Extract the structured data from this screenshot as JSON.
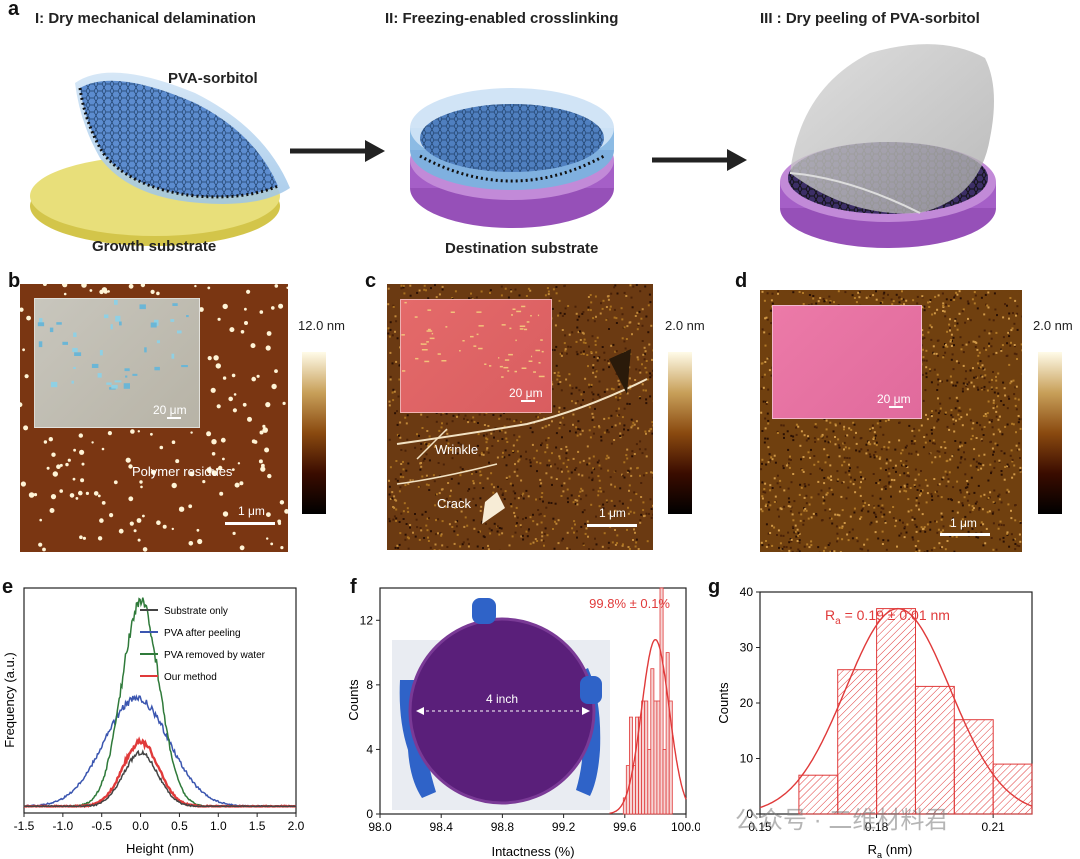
{
  "panel_a": {
    "label": "a",
    "step1_title": "I: Dry mechanical delamination",
    "step2_title": "II: Freezing-enabled crosslinking",
    "step3_title": "III : Dry peeling of PVA-sorbitol",
    "pva_label": "PVA-sorbitol",
    "growth_label": "Growth substrate",
    "destination_label": "Destination substrate"
  },
  "panel_b": {
    "label": "b",
    "colorbar_max": "12.0 nm",
    "inset_scale": "20 μm",
    "scale": "1 μm",
    "annotation": "Polymer residues"
  },
  "panel_c": {
    "label": "c",
    "colorbar_max": "2.0 nm",
    "inset_scale": "20 μm",
    "scale": "1 μm",
    "annotation_wrinkle": "Wrinkle",
    "annotation_crack": "Crack"
  },
  "panel_d": {
    "label": "d",
    "colorbar_max": "2.0 nm",
    "inset_scale": "20 μm",
    "scale": "1 μm"
  },
  "panel_f_photo": {
    "wafer_label": "4 inch"
  },
  "watermark": "公众号 · 二维材料君",
  "colors": {
    "data_red": "#e03a3a",
    "dark_green": "#2f7a3a",
    "blue": "#3b56b0",
    "gray": "#444444"
  },
  "chart_data": [
    {
      "id": "e",
      "type": "line",
      "panel_label": "e",
      "xlabel": "Height (nm)",
      "ylabel": "Frequency (a.u.)",
      "xlim": [
        -1.5,
        2.0
      ],
      "xticks": [
        "-1.5",
        "-1.0",
        "-0.5",
        "0.0",
        "0.5",
        "1.0",
        "1.5",
        "2.0"
      ],
      "series": [
        {
          "name": "Substrate only",
          "color": "#444444",
          "center": 0.0,
          "sigma": 0.22,
          "peak": 0.25
        },
        {
          "name": "PVA after peeling",
          "color": "#3b56b0",
          "center": -0.05,
          "sigma": 0.42,
          "peak": 0.5
        },
        {
          "name": "PVA removed by water",
          "color": "#2f7a3a",
          "center": 0.0,
          "sigma": 0.24,
          "peak": 0.95
        },
        {
          "name": "Our method",
          "color": "#e03a3a",
          "center": 0.0,
          "sigma": 0.23,
          "peak": 0.3
        }
      ]
    },
    {
      "id": "f",
      "type": "bar",
      "panel_label": "f",
      "xlabel": "Intactness (%)",
      "ylabel": "Counts",
      "xlim": [
        98.0,
        100.0
      ],
      "ylim": [
        0,
        14
      ],
      "xticks": [
        "98.0",
        "98.4",
        "98.8",
        "99.2",
        "99.6",
        "100.0"
      ],
      "yticks": [
        "0",
        "4",
        "8",
        "12"
      ],
      "annotation": "99.8% ± 0.1%",
      "bin_centers": [
        99.6,
        99.62,
        99.64,
        99.66,
        99.68,
        99.7,
        99.72,
        99.74,
        99.76,
        99.78,
        99.8,
        99.82,
        99.84,
        99.86,
        99.88,
        99.9
      ],
      "values": [
        1,
        3,
        6,
        3,
        6,
        6,
        7,
        7,
        4,
        9,
        7,
        7,
        14,
        4,
        10,
        7
      ],
      "fit": {
        "mean": 99.8,
        "sigma": 0.09,
        "peak": 10.8
      }
    },
    {
      "id": "g",
      "type": "bar",
      "panel_label": "g",
      "xlabel": "R",
      "xlabel_sub": "a",
      "xlabel_unit": " (nm)",
      "ylabel": "Counts",
      "xlim": [
        0.15,
        0.22
      ],
      "ylim": [
        0,
        40
      ],
      "xticks": [
        "0.15",
        "0.18",
        "0.21"
      ],
      "yticks": [
        "0",
        "10",
        "20",
        "30",
        "40"
      ],
      "annotation_prefix": "R",
      "annotation_sub": "a",
      "annotation_suffix": " = 0.19 ± 0.01 nm",
      "bin_centers": [
        0.165,
        0.175,
        0.185,
        0.195,
        0.205,
        0.215
      ],
      "values": [
        7,
        26,
        37,
        23,
        17,
        9
      ],
      "fit": {
        "mean": 0.1855,
        "sigma": 0.0135,
        "peak": 37
      }
    }
  ]
}
